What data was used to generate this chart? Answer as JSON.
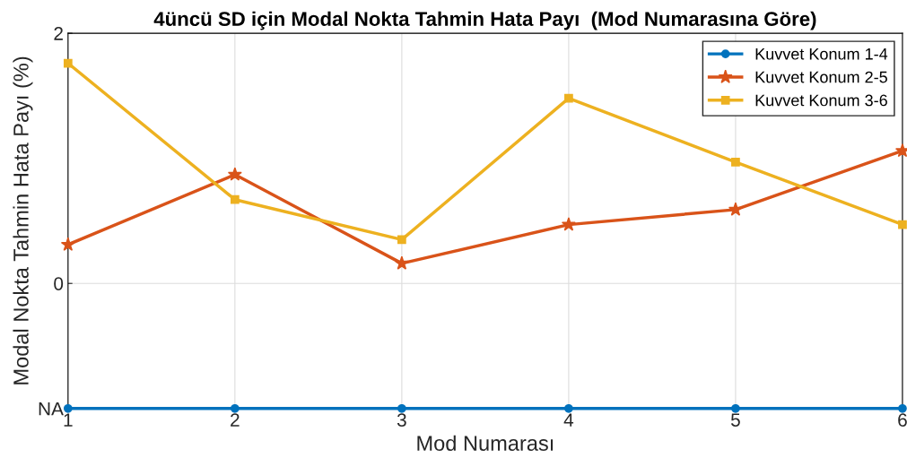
{
  "chart_data": {
    "type": "line",
    "title": "4üncü SD için Modal Nokta Tahmin Hata Payı  (Mod Numarasına Göre)",
    "xlabel": "Mod Numarası",
    "ylabel": "Modal Nokta Tahmin Hata Payı (%)",
    "x": [
      1,
      2,
      3,
      4,
      5,
      6
    ],
    "series": [
      {
        "name": "Kuvvet Konum 1-4",
        "color": "#0072bd",
        "marker": "circle",
        "values": [
          -1,
          -1,
          -1,
          -1,
          -1,
          -1
        ]
      },
      {
        "name": "Kuvvet Konum 2-5",
        "color": "#d95319",
        "marker": "star",
        "values": [
          0.31,
          0.87,
          0.16,
          0.47,
          0.59,
          1.06
        ]
      },
      {
        "name": "Kuvvet Konum 3-6",
        "color": "#edb120",
        "marker": "square",
        "values": [
          1.76,
          0.67,
          0.35,
          1.48,
          0.97,
          0.47
        ]
      }
    ],
    "xlim": [
      1,
      6
    ],
    "xticks": [
      1,
      2,
      3,
      4,
      5,
      6
    ],
    "ylim": [
      -1,
      2
    ],
    "yticks": [
      {
        "value": -1,
        "label": "NA"
      },
      0,
      2
    ],
    "grid": true,
    "legend": "top right",
    "line_style": "solid"
  }
}
